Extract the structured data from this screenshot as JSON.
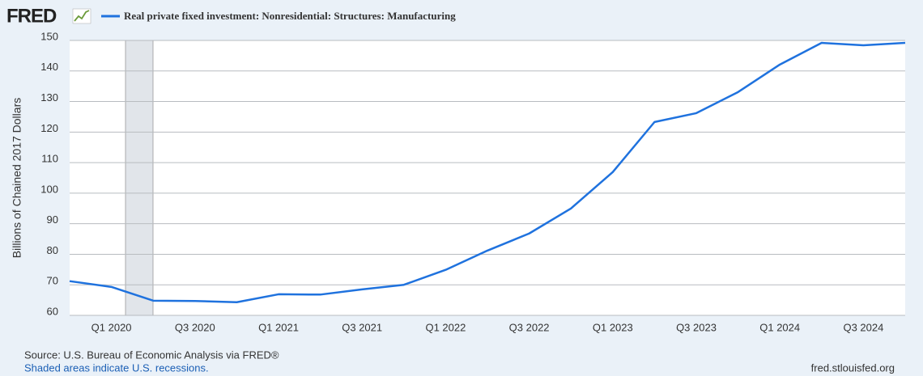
{
  "logo": "FRED",
  "chart_data": {
    "type": "line",
    "ylabel": "Billions of Chained 2017 Dollars",
    "categories": [
      null,
      "Q1 2020",
      null,
      "Q3 2020",
      null,
      "Q1 2021",
      null,
      "Q3 2021",
      null,
      "Q1 2022",
      null,
      "Q3 2022",
      null,
      "Q1 2023",
      null,
      "Q3 2023",
      null,
      "Q1 2024",
      null,
      "Q3 2024",
      null
    ],
    "series": [
      {
        "name": "Real private fixed investment: Nonresidential: Structures: Manufacturing",
        "color": "#1f72de",
        "values": [
          71.2,
          69.3,
          64.8,
          64.7,
          64.3,
          66.9,
          66.8,
          68.5,
          70.0,
          74.9,
          81.2,
          86.8,
          95.0,
          106.9,
          123.3,
          126.2,
          133.1,
          142.1,
          149.2,
          148.4,
          149.2
        ]
      }
    ],
    "ylim": [
      60,
      150
    ],
    "yticks": [
      60,
      70,
      80,
      90,
      100,
      110,
      120,
      130,
      140,
      150
    ],
    "grid": true
  },
  "footer": {
    "source": "Source: U.S. Bureau of Economic Analysis via FRED®",
    "note": "Shaded areas indicate U.S. recessions.",
    "site": "fred.stlouisfed.org"
  }
}
